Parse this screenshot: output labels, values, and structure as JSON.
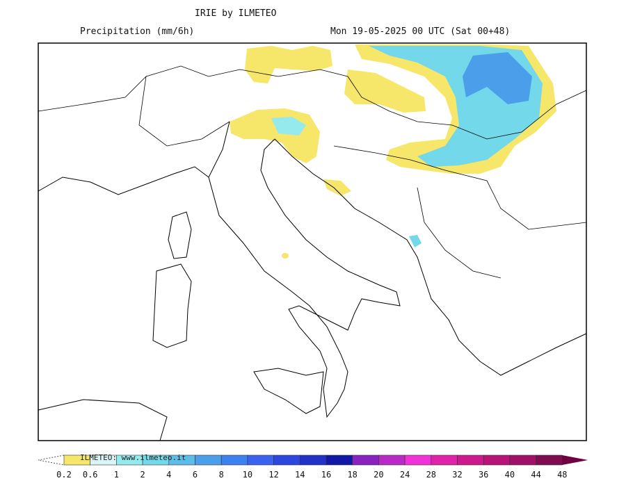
{
  "header": {
    "title": "IRIE by ILMETEO",
    "variable": "Precipitation (mm/6h)",
    "valid_time": "Mon 19-05-2025 00 UTC (Sat 00+48)"
  },
  "watermark": "ILMETEO: www.ilmeteo.it",
  "colorbar": {
    "unit": "mm/6h",
    "ticks": [
      "0.2",
      "0.6",
      "1",
      "2",
      "4",
      "6",
      "8",
      "10",
      "12",
      "14",
      "16",
      "18",
      "20",
      "24",
      "28",
      "32",
      "36",
      "40",
      "44",
      "48"
    ],
    "colors": [
      "#f6e66a",
      "#d9f5f5",
      "#95eaee",
      "#72d8ea",
      "#5cbde8",
      "#4a9eea",
      "#3d80f0",
      "#3a62ee",
      "#2c46de",
      "#2232c6",
      "#1218a6",
      "#8a22c0",
      "#b82ac8",
      "#f032d8",
      "#e022aa",
      "#cc1a8e",
      "#b81478",
      "#a01068",
      "#800c50"
    ],
    "overflow_color": "#700040"
  }
}
